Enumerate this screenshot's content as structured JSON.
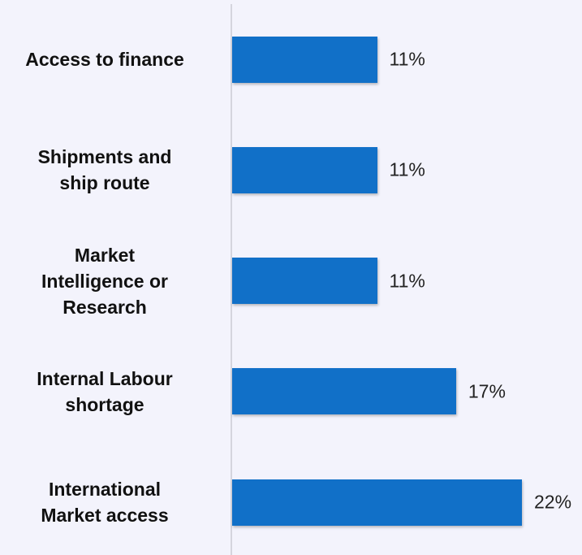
{
  "chart_data": {
    "type": "bar",
    "orientation": "horizontal",
    "categories": [
      "Access to finance",
      "Shipments and\nship route",
      "Market\nIntelligence or\nResearch",
      "Internal Labour\nshortage",
      "International\nMarket access"
    ],
    "values": [
      11,
      11,
      11,
      17,
      22
    ],
    "value_labels": [
      "11%",
      "11%",
      "11%",
      "17%",
      "22%"
    ],
    "color": "#1170c8"
  }
}
